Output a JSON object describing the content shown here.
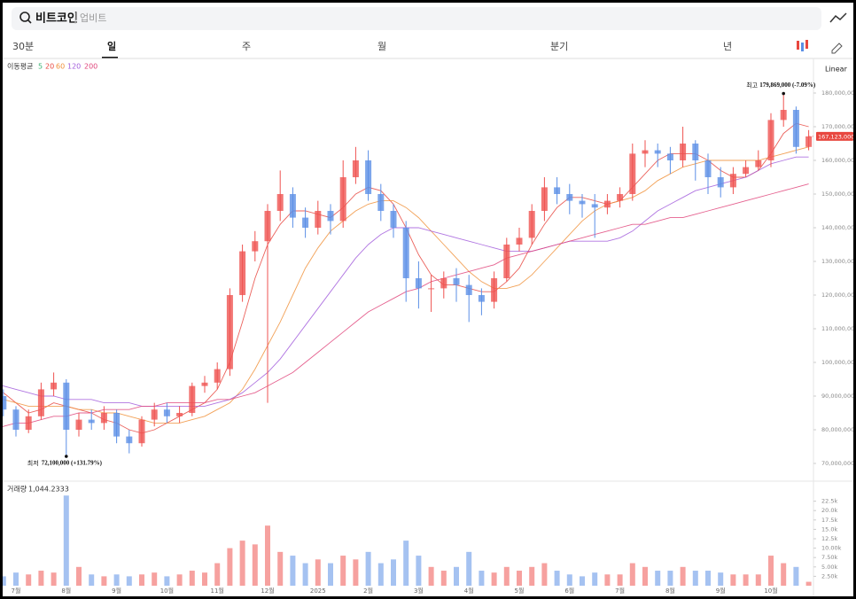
{
  "ui": {
    "search": "비트코인",
    "exchange": "업비트",
    "tabs": [
      "30분",
      "일",
      "주",
      "월",
      "분기",
      "년"
    ],
    "active_tab": 1,
    "scale": "Linear"
  },
  "chart_data": {
    "type": "candlestick",
    "up_color": "#ef5350",
    "down_color": "#5b8fe6",
    "categories": [
      null,
      null,
      "7월",
      null,
      null,
      null,
      "8월",
      null,
      null,
      null,
      "9월",
      null,
      null,
      null,
      "10월",
      null,
      null,
      null,
      "11월",
      null,
      null,
      null,
      "12월",
      null,
      null,
      null,
      "2025",
      null,
      null,
      null,
      "2월",
      null,
      null,
      null,
      "3월",
      null,
      null,
      null,
      "4월",
      null,
      null,
      null,
      "5월",
      null,
      null,
      null,
      "6월",
      null,
      null,
      null,
      "7월",
      null,
      null,
      null,
      "8월",
      null,
      null,
      null,
      "9월",
      null,
      null,
      null,
      "10월",
      null,
      null,
      null
    ],
    "open": [
      92000000,
      90000000,
      86000000,
      80000000,
      84000000,
      92000000,
      94000000,
      80000000,
      83000000,
      82000000,
      85000000,
      78000000,
      76000000,
      83000000,
      86000000,
      84000000,
      85000000,
      93000000,
      94000000,
      98000000,
      120000000,
      133000000,
      136000000,
      145000000,
      150000000,
      143000000,
      140000000,
      145000000,
      142000000,
      155000000,
      160000000,
      150000000,
      145000000,
      140000000,
      125000000,
      122000000,
      122000000,
      125000000,
      123000000,
      120000000,
      118000000,
      125000000,
      135000000,
      137000000,
      145000000,
      152000000,
      150000000,
      148000000,
      147000000,
      146000000,
      148000000,
      150000000,
      162000000,
      163000000,
      162000000,
      160000000,
      165000000,
      160000000,
      155000000,
      152000000,
      156000000,
      158000000,
      160000000,
      172000000,
      175000000,
      164000000
    ],
    "high": [
      95000000,
      92000000,
      87000000,
      86000000,
      94000000,
      97000000,
      95000000,
      85000000,
      86000000,
      87000000,
      86000000,
      80000000,
      84000000,
      88000000,
      88000000,
      87000000,
      94000000,
      96000000,
      100000000,
      122000000,
      135000000,
      139000000,
      147000000,
      157000000,
      152000000,
      146000000,
      148000000,
      147000000,
      160000000,
      164000000,
      163000000,
      153000000,
      147000000,
      142000000,
      130000000,
      126000000,
      127000000,
      128000000,
      126000000,
      122000000,
      127000000,
      137000000,
      140000000,
      147000000,
      155000000,
      155000000,
      153000000,
      150000000,
      150000000,
      150000000,
      152000000,
      165000000,
      166000000,
      165000000,
      164000000,
      170000000,
      166000000,
      162000000,
      158000000,
      158000000,
      160000000,
      163000000,
      174000000,
      179869000,
      176000000,
      169000000
    ],
    "low": [
      88000000,
      84000000,
      78000000,
      79000000,
      83000000,
      90000000,
      72100000,
      78000000,
      80000000,
      80000000,
      76000000,
      73000000,
      75000000,
      81000000,
      82000000,
      82000000,
      84000000,
      91000000,
      92000000,
      96000000,
      118000000,
      130000000,
      88000000,
      142000000,
      140000000,
      137000000,
      138000000,
      138000000,
      140000000,
      153000000,
      148000000,
      142000000,
      137000000,
      118000000,
      116000000,
      115000000,
      119000000,
      118000000,
      112000000,
      114000000,
      116000000,
      124000000,
      133000000,
      135000000,
      142000000,
      147000000,
      144000000,
      143000000,
      137000000,
      144000000,
      146000000,
      148000000,
      158000000,
      158000000,
      156000000,
      158000000,
      154000000,
      150000000,
      149000000,
      150000000,
      155000000,
      157000000,
      158000000,
      170000000,
      162000000,
      163000000
    ],
    "close": [
      90000000,
      86000000,
      80000000,
      84000000,
      92000000,
      94000000,
      80000000,
      83000000,
      82000000,
      85000000,
      78000000,
      76000000,
      83000000,
      86000000,
      84000000,
      85000000,
      93000000,
      94000000,
      98000000,
      120000000,
      133000000,
      136000000,
      145000000,
      150000000,
      143000000,
      140000000,
      145000000,
      142000000,
      155000000,
      160000000,
      150000000,
      145000000,
      140000000,
      125000000,
      122000000,
      122000000,
      125000000,
      123000000,
      120000000,
      118000000,
      125000000,
      135000000,
      137000000,
      145000000,
      152000000,
      150000000,
      148000000,
      147000000,
      146000000,
      148000000,
      150000000,
      162000000,
      163000000,
      162000000,
      160000000,
      165000000,
      160000000,
      155000000,
      152000000,
      156000000,
      158000000,
      160000000,
      172000000,
      175000000,
      164000000,
      167123000
    ],
    "ylim": [
      65000000,
      190000000
    ],
    "yticks": [
      {
        "value": 70000000,
        "label": "70,000,000"
      },
      {
        "value": 80000000,
        "label": "80,000,000"
      },
      {
        "value": 90000000,
        "label": "90,000,000"
      },
      {
        "value": 100000000,
        "label": "100,000,000"
      },
      {
        "value": 110000000,
        "label": "110,000,000"
      },
      {
        "value": 120000000,
        "label": "120,000,000"
      },
      {
        "value": 130000000,
        "label": "130,000,000"
      },
      {
        "value": 140000000,
        "label": "140,000,000"
      },
      {
        "value": 150000000,
        "label": "150,000,000"
      },
      {
        "value": 160000000,
        "label": "160,000,000"
      },
      {
        "value": 170000000,
        "label": "170,000,000"
      },
      {
        "value": 180000000,
        "label": "180,000,000"
      }
    ],
    "last_price": {
      "value": 167123000,
      "label": "167,123,000"
    },
    "annotations": [
      {
        "prefix": "최고",
        "label": "179,869,000 (-7.09%)",
        "value": 179869000
      },
      {
        "prefix": "최저",
        "label": "72,100,000 (+131.79%)",
        "value": 72100000
      }
    ],
    "moving_averages": {
      "title": "이동평균",
      "series": [
        {
          "name": "5",
          "color": "#3bb273"
        },
        {
          "name": "20",
          "color": "#e8473f",
          "values": [
            92000000,
            91000000,
            88000000,
            85000000,
            86000000,
            88000000,
            87000000,
            86000000,
            85000000,
            83000000,
            82000000,
            80000000,
            79000000,
            80000000,
            82000000,
            84000000,
            86000000,
            88000000,
            92000000,
            100000000,
            112000000,
            125000000,
            135000000,
            141000000,
            145000000,
            145000000,
            144000000,
            143000000,
            146000000,
            150000000,
            152000000,
            151000000,
            147000000,
            140000000,
            132000000,
            126000000,
            123000000,
            123000000,
            122000000,
            121000000,
            121000000,
            124000000,
            128000000,
            135000000,
            141000000,
            146000000,
            149000000,
            149000000,
            148000000,
            147000000,
            148000000,
            152000000,
            156000000,
            160000000,
            162000000,
            162000000,
            162000000,
            160000000,
            157000000,
            155000000,
            155000000,
            157000000,
            162000000,
            168000000,
            171000000,
            170000000
          ]
        },
        {
          "name": "60",
          "color": "#f0913a",
          "values": [
            90000000,
            89000000,
            88000000,
            87000000,
            87000000,
            87000000,
            87000000,
            86000000,
            86000000,
            85000000,
            85000000,
            84000000,
            83000000,
            82000000,
            82000000,
            82000000,
            83000000,
            84000000,
            86000000,
            88000000,
            92000000,
            98000000,
            105000000,
            112000000,
            120000000,
            128000000,
            134000000,
            139000000,
            142000000,
            145000000,
            147000000,
            148000000,
            148000000,
            146000000,
            143000000,
            139000000,
            135000000,
            131000000,
            127000000,
            124000000,
            122000000,
            122000000,
            123000000,
            126000000,
            130000000,
            134000000,
            138000000,
            142000000,
            145000000,
            147000000,
            148000000,
            149000000,
            151000000,
            154000000,
            156000000,
            158000000,
            159000000,
            160000000,
            160000000,
            160000000,
            160000000,
            160000000,
            161000000,
            162000000,
            163000000,
            164000000
          ]
        },
        {
          "name": "120",
          "color": "#a25ddc",
          "values": [
            94000000,
            93000000,
            92000000,
            91000000,
            90000000,
            90000000,
            89000000,
            89000000,
            89000000,
            88000000,
            88000000,
            88000000,
            87000000,
            87000000,
            87000000,
            87000000,
            87000000,
            87000000,
            88000000,
            89000000,
            91000000,
            94000000,
            97000000,
            101000000,
            106000000,
            111000000,
            116000000,
            121000000,
            126000000,
            131000000,
            135000000,
            138000000,
            140000000,
            140000000,
            140000000,
            139000000,
            138000000,
            137000000,
            136000000,
            135000000,
            134000000,
            133000000,
            133000000,
            133000000,
            134000000,
            135000000,
            136000000,
            136000000,
            136000000,
            136000000,
            137000000,
            139000000,
            142000000,
            145000000,
            147000000,
            149000000,
            151000000,
            152000000,
            153000000,
            154000000,
            155000000,
            157000000,
            159000000,
            160000000,
            161000000,
            161000000
          ]
        },
        {
          "name": "200",
          "color": "#e0457b",
          "values": [
            80000000,
            81000000,
            82000000,
            82000000,
            83000000,
            84000000,
            84000000,
            85000000,
            85000000,
            86000000,
            86000000,
            86000000,
            87000000,
            87000000,
            88000000,
            88000000,
            88000000,
            88000000,
            89000000,
            89000000,
            90000000,
            91000000,
            93000000,
            95000000,
            97000000,
            100000000,
            103000000,
            106000000,
            109000000,
            112000000,
            115000000,
            117000000,
            119000000,
            121000000,
            122000000,
            124000000,
            125000000,
            126000000,
            127000000,
            128000000,
            129000000,
            131000000,
            132000000,
            133000000,
            134000000,
            135000000,
            136000000,
            137000000,
            138000000,
            139000000,
            140000000,
            141000000,
            141000000,
            142000000,
            143000000,
            143000000,
            144000000,
            145000000,
            146000000,
            147000000,
            148000000,
            149000000,
            150000000,
            151000000,
            152000000,
            153000000
          ]
        }
      ]
    },
    "volume": {
      "title": "거래량",
      "current_label": "1,044.2333",
      "ylim": [
        0,
        25000
      ],
      "values": [
        3000,
        2500,
        3500,
        3000,
        4000,
        3500,
        24000,
        5000,
        3000,
        2500,
        3000,
        2500,
        3000,
        3500,
        2500,
        3000,
        4000,
        3500,
        6000,
        10000,
        12000,
        11000,
        16000,
        9000,
        8000,
        6000,
        7000,
        6000,
        8000,
        7000,
        9000,
        6000,
        7000,
        12000,
        8000,
        5000,
        4000,
        5000,
        9000,
        4000,
        3500,
        5000,
        4000,
        5000,
        6000,
        4000,
        3000,
        2500,
        3500,
        3000,
        3000,
        6000,
        5000,
        4000,
        4000,
        5000,
        4000,
        4000,
        3500,
        3000,
        3000,
        3000,
        8000,
        6000,
        5000,
        1044.2333
      ],
      "yticks": [
        {
          "value": 2500,
          "label": "2.50k"
        },
        {
          "value": 5000,
          "label": "5.00k"
        },
        {
          "value": 7500,
          "label": "7.50k"
        },
        {
          "value": 10000,
          "label": "10.00k"
        },
        {
          "value": 12500,
          "label": "12.5k"
        },
        {
          "value": 15000,
          "label": "15.0k"
        },
        {
          "value": 17500,
          "label": "17.5k"
        },
        {
          "value": 20000,
          "label": "20.0k"
        },
        {
          "value": 22500,
          "label": "22.5k"
        }
      ]
    }
  }
}
